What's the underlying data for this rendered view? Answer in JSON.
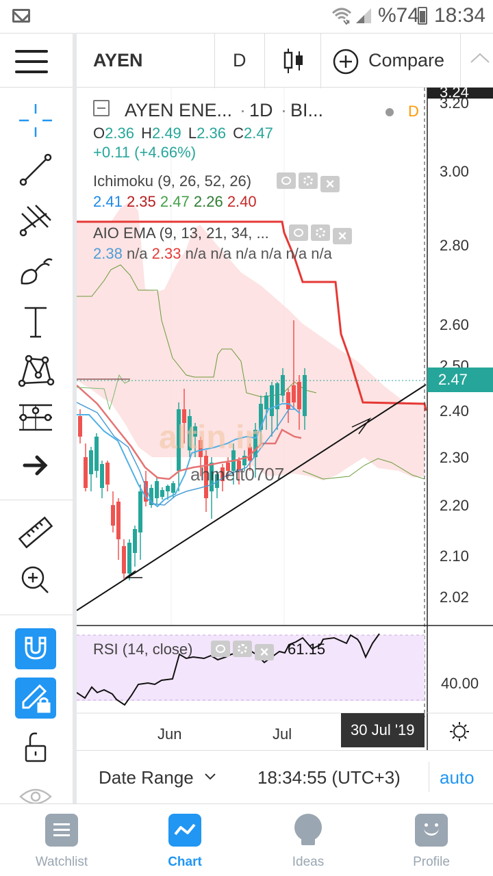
{
  "status_bar": {
    "battery": "%74",
    "time": "18:34",
    "icons": [
      "mail-icon",
      "wifi-icon",
      "signal-icon",
      "battery-icon"
    ]
  },
  "toolbar": {
    "symbol": "AYEN",
    "interval": "D",
    "compare_label": "Compare"
  },
  "legend": {
    "title": "AYEN ENE...",
    "interval": "1D",
    "exchange": "BI...",
    "flag": "D",
    "ohlc": {
      "o_label": "O",
      "o": "2.36",
      "h_label": "H",
      "h": "2.49",
      "l_label": "L",
      "l": "2.36",
      "c_label": "C",
      "c": "2.47"
    },
    "change": "+0.11 (+4.66%)"
  },
  "indicators": {
    "ichimoku": {
      "name": "Ichimoku (9, 26, 52, 26)",
      "values": [
        "2.41",
        "2.35",
        "2.47",
        "2.26",
        "2.40"
      ]
    },
    "aio_ema": {
      "name": "AIO EMA (9, 13, 21, 34, ...",
      "values": [
        "2.38",
        "n/a",
        "2.33",
        "n/a",
        "n/a",
        "n/a",
        "n/a",
        "n/a",
        "n/a"
      ]
    },
    "rsi": {
      "name": "RSI (14, close)",
      "value": "61.15"
    }
  },
  "watermark": {
    "brand": "altin.in",
    "author": "ahmett0707"
  },
  "price_axis": {
    "top_label": "3.24",
    "ticks": [
      "3.20",
      "3.00",
      "2.80",
      "2.60",
      "2.50",
      "2.40",
      "2.30",
      "2.20",
      "2.10",
      "2.02"
    ],
    "current_price": "2.47",
    "rsi_tick": "40.00"
  },
  "time_axis": {
    "labels": [
      "Jun",
      "Jul"
    ],
    "crosshair_date": "30 Jul '19"
  },
  "date_range": {
    "label": "Date Range",
    "time": "18:34:55 (UTC+3)",
    "scale": "auto"
  },
  "nav": [
    {
      "label": "Watchlist",
      "icon": "watchlist-icon",
      "active": false
    },
    {
      "label": "Chart",
      "icon": "chart-icon",
      "active": true
    },
    {
      "label": "Ideas",
      "icon": "ideas-icon",
      "active": false
    },
    {
      "label": "Profile",
      "icon": "profile-icon",
      "active": false
    }
  ],
  "colors": {
    "accent": "#2196f3",
    "up": "#26a69a",
    "down": "#ef5350",
    "cloud": "#fde0e0",
    "rsi_bg": "#f3e5fb"
  }
}
